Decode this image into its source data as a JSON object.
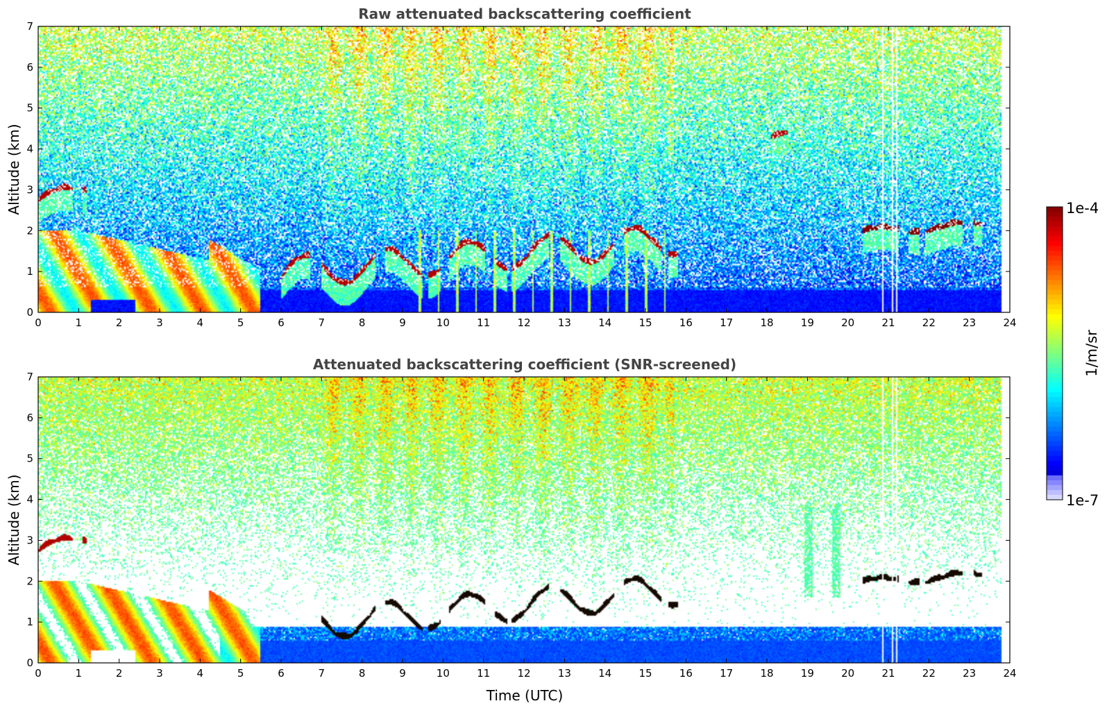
{
  "chart_data": [
    {
      "type": "heatmap",
      "title": "Raw attenuated backscattering coefficient",
      "xlabel": "",
      "ylabel": "Altitude (km)",
      "xlim": [
        0,
        24
      ],
      "ylim": [
        0,
        7
      ],
      "xticks": [
        "0",
        "1",
        "2",
        "3",
        "4",
        "5",
        "6",
        "7",
        "8",
        "9",
        "10",
        "11",
        "12",
        "13",
        "14",
        "15",
        "16",
        "17",
        "18",
        "19",
        "20",
        "21",
        "22",
        "23",
        "24"
      ],
      "yticks": [
        "0",
        "1",
        "2",
        "3",
        "4",
        "5",
        "6",
        "7"
      ],
      "screened": false,
      "data_end_x": 23.8,
      "features": [
        {
          "kind": "cloud_layer",
          "x": [
            0,
            1.2
          ],
          "y": [
            2.7,
            3.25
          ],
          "level": 0.95
        },
        {
          "kind": "aerosol_mixed_layer",
          "x": [
            0,
            5.5
          ],
          "y": [
            0,
            2.0
          ],
          "level": 0.7
        },
        {
          "kind": "cloud_layer",
          "x": [
            6.0,
            15.8
          ],
          "y": [
            0.9,
            2.4
          ],
          "level": 0.95
        },
        {
          "kind": "cloud_layer",
          "x": [
            20.2,
            23.3
          ],
          "y": [
            1.9,
            2.25
          ],
          "level": 1.0
        },
        {
          "kind": "cloud_fragment",
          "x": [
            18.1,
            18.5
          ],
          "y": [
            4.25,
            4.4
          ],
          "level": 0.95
        },
        {
          "kind": "precipitation_streaks",
          "x": [
            9.0,
            15.6
          ],
          "y": [
            0,
            2.0
          ],
          "level": 0.55
        },
        {
          "kind": "missing_data_gaps",
          "x": [
            20.85,
            21.25
          ],
          "y": [
            0,
            7
          ]
        }
      ]
    },
    {
      "type": "heatmap",
      "title": "Attenuated backscattering coefficient (SNR-screened)",
      "xlabel": "Time (UTC)",
      "ylabel": "Altitude (km)",
      "xlim": [
        0,
        24
      ],
      "ylim": [
        0,
        7
      ],
      "xticks": [
        "0",
        "1",
        "2",
        "3",
        "4",
        "5",
        "6",
        "7",
        "8",
        "9",
        "10",
        "11",
        "12",
        "13",
        "14",
        "15",
        "16",
        "17",
        "18",
        "19",
        "20",
        "21",
        "22",
        "23",
        "24"
      ],
      "yticks": [
        "0",
        "1",
        "2",
        "3",
        "4",
        "5",
        "6",
        "7"
      ],
      "screened": true,
      "data_end_x": 23.8,
      "features": [
        {
          "kind": "cloud_layer",
          "x": [
            0,
            1.2
          ],
          "y": [
            2.7,
            3.25
          ],
          "level": 0.95
        },
        {
          "kind": "aerosol_mixed_layer",
          "x": [
            0,
            5.5
          ],
          "y": [
            0,
            2.0
          ],
          "level": 0.7
        },
        {
          "kind": "cloud_layer",
          "x": [
            7.0,
            15.8
          ],
          "y": [
            0.9,
            2.4
          ],
          "level": 1.0
        },
        {
          "kind": "cloud_layer",
          "x": [
            20.2,
            23.3
          ],
          "y": [
            1.9,
            2.25
          ],
          "level": 1.0
        },
        {
          "kind": "boundary_layer_aerosol",
          "x": [
            4.5,
            23.8
          ],
          "y": [
            0,
            1.0
          ],
          "level": 0.2
        },
        {
          "kind": "virga",
          "x": [
            18.8,
            19.9
          ],
          "y": [
            1.6,
            3.9
          ],
          "level": 0.45
        },
        {
          "kind": "missing_data_gaps",
          "x": [
            20.85,
            21.25
          ],
          "y": [
            0,
            7
          ]
        }
      ]
    }
  ],
  "colorbar": {
    "label": "1/m/sr",
    "max_label": "1e-4",
    "min_label": "1e-7",
    "scale": "log",
    "range": [
      1e-07,
      0.0001
    ],
    "colormap": "jet"
  }
}
